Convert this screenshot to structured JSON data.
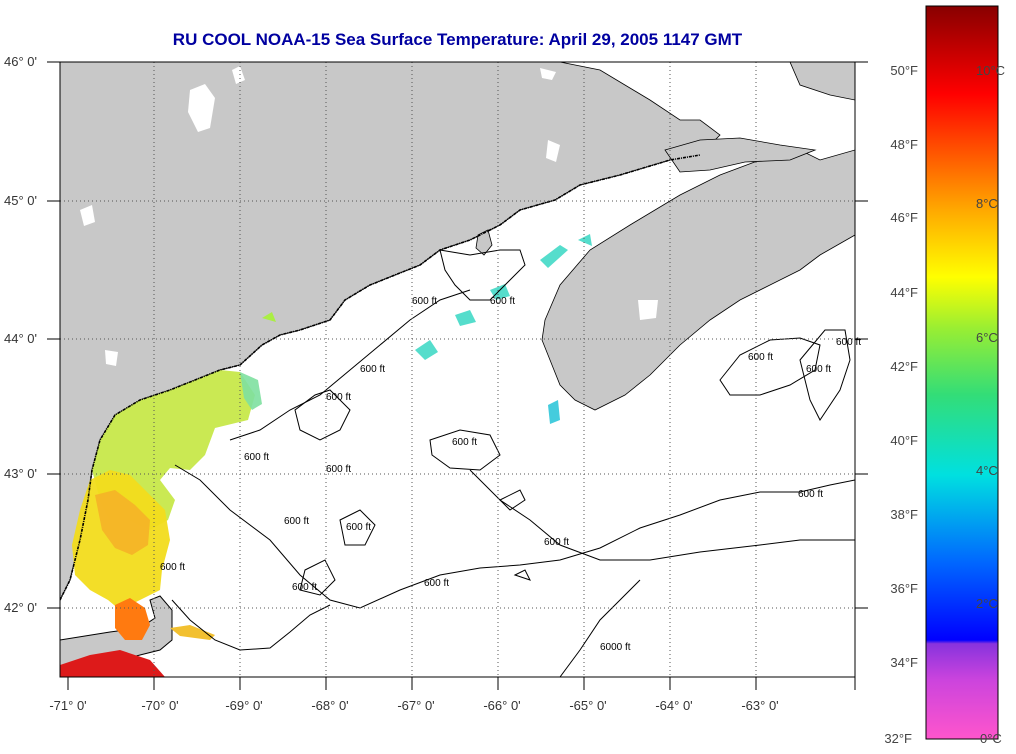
{
  "title": "RU COOL  NOAA-15  Sea Surface Temperature:  April 29, 2005 1147 GMT",
  "lat_labels": [
    "46° 0'",
    "45° 0'",
    "44° 0'",
    "43° 0'",
    "42° 0'"
  ],
  "lon_labels": [
    "-71° 0'",
    "-70° 0'",
    "-69° 0'",
    "-68° 0'",
    "-67° 0'",
    "-66° 0'",
    "-65° 0'",
    "-64° 0'",
    "-63° 0'"
  ],
  "colorbar": {
    "f_labels": [
      "50°F",
      "48°F",
      "46°F",
      "44°F",
      "42°F",
      "40°F",
      "38°F",
      "36°F",
      "34°F",
      "32°F"
    ],
    "c_labels": [
      "10°C",
      "8°C",
      "6°C",
      "4°C",
      "2°C",
      "0°C"
    ],
    "stops": [
      "#ff55cc",
      "#8833dd",
      "#0000ff",
      "#00aaff",
      "#00e0e0",
      "#33dd77",
      "#aaee22",
      "#ffff00",
      "#ffaa00",
      "#ff5500",
      "#ff0000",
      "#990000"
    ]
  },
  "contours": {
    "label": "600 ft",
    "label_deep": "6000 ft"
  },
  "colors": {
    "land": "#c8c8c8",
    "ocean": "#ffffff",
    "title": "#0000a0"
  }
}
